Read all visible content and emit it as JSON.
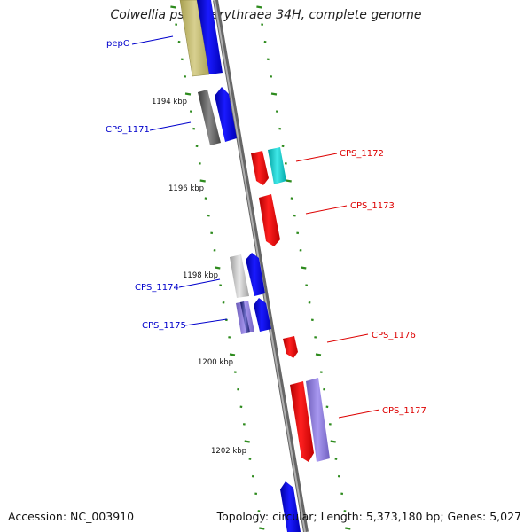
{
  "title": "Colwellia psychrerythraea 34H, complete genome",
  "footer": {
    "accession": "Accession: NC_003910",
    "summary": "Topology: circular; Length: 5,373,180 bp; Genes: 5,027"
  },
  "colors": {
    "forward_label": "#0000cc",
    "reverse_label": "#dd0000",
    "backbone": "#8a8a8a",
    "tick": "#2e8b1e"
  },
  "ticks": [
    "1194 kbp",
    "1196 kbp",
    "1198 kbp",
    "1200 kbp",
    "1202 kbp"
  ],
  "genes": [
    {
      "name": "pepO",
      "strand": "forward",
      "color": "#0000ff"
    },
    {
      "name": "CPS_1171",
      "strand": "forward",
      "color": "#0000ff"
    },
    {
      "name": "CPS_1172",
      "strand": "reverse",
      "color": "#ff0000"
    },
    {
      "name": "CPS_1173",
      "strand": "reverse",
      "color": "#ff0000"
    },
    {
      "name": "CPS_1174",
      "strand": "forward",
      "color": "#0000ff"
    },
    {
      "name": "CPS_1175",
      "strand": "forward",
      "color": "#0000ff"
    },
    {
      "name": "CPS_1176",
      "strand": "reverse",
      "color": "#ff0000"
    },
    {
      "name": "CPS_1177",
      "strand": "reverse",
      "color": "#ff0000"
    }
  ]
}
